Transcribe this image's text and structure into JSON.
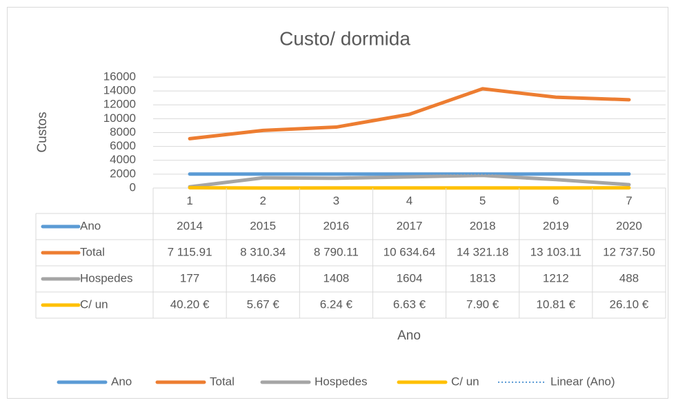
{
  "chart_data": {
    "type": "line",
    "title": "Custo/ dormida",
    "y_label": "Custos",
    "x_label": "Ano",
    "categories": [
      "1",
      "2",
      "3",
      "4",
      "5",
      "6",
      "7"
    ],
    "series": [
      {
        "name": "Ano",
        "color": "#5b9bd5",
        "values": [
          2014,
          2015,
          2016,
          2017,
          2018,
          2019,
          2020
        ]
      },
      {
        "name": "Total",
        "color": "#ed7d31",
        "values": [
          7115.91,
          8310.34,
          8790.11,
          10634.64,
          14321.18,
          13103.11,
          12737.5
        ],
        "value_labels": [
          "7 115.91",
          "8 310.34",
          "8 790.11",
          "10 634.64",
          "14 321.18",
          "13 103.11",
          "12 737.50"
        ]
      },
      {
        "name": "Hospedes",
        "color": "#a5a5a5",
        "values": [
          177,
          1466,
          1408,
          1604,
          1813,
          1212,
          488
        ]
      },
      {
        "name": "C/ un",
        "color": "#ffc000",
        "values": [
          40.2,
          5.67,
          6.24,
          6.63,
          7.9,
          10.81,
          26.1
        ],
        "value_labels": [
          "40.20 €",
          "5.67 €",
          "6.24 €",
          "6.63 €",
          "7.90 €",
          "10.81 €",
          "26.10 €"
        ]
      },
      {
        "name": "Linear (Ano)",
        "color": "#5b9bd5",
        "trendline": true,
        "dash": "2 3",
        "values": [
          2014,
          2015,
          2016,
          2017,
          2018,
          2019,
          2020
        ]
      }
    ],
    "ylim": [
      0,
      16000
    ],
    "yticks": [
      0,
      2000,
      4000,
      6000,
      8000,
      10000,
      12000,
      14000,
      16000
    ],
    "grid": true,
    "legend": "bottom",
    "data_table": true
  }
}
